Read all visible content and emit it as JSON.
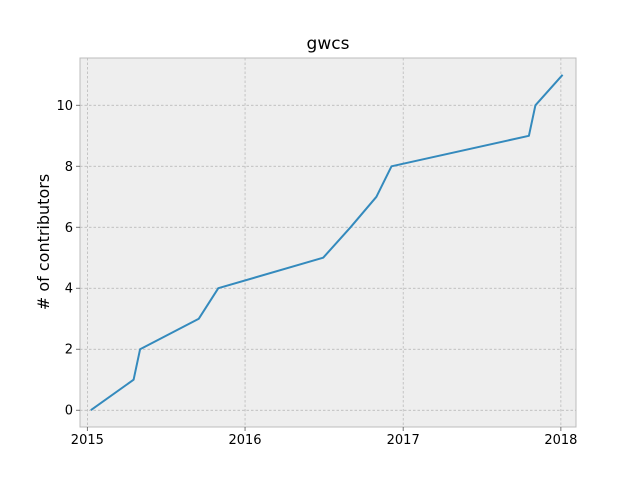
{
  "chart_data": {
    "type": "line",
    "title": "gwcs",
    "xlabel": "",
    "ylabel": "# of contributors",
    "xlim": [
      "2014-12-15",
      "2018-02-05"
    ],
    "ylim": [
      -0.55,
      11.55
    ],
    "grid": true,
    "x_ticks": [
      "2015",
      "2016",
      "2017",
      "2018"
    ],
    "y_ticks": [
      0,
      2,
      4,
      6,
      8,
      10
    ],
    "series": [
      {
        "color": "#348abd",
        "points": [
          [
            "2015-01-09",
            0
          ],
          [
            "2015-04-18",
            1
          ],
          [
            "2015-05-03",
            2
          ],
          [
            "2015-09-16",
            3
          ],
          [
            "2015-10-31",
            4
          ],
          [
            "2016-06-30",
            5
          ],
          [
            "2016-09-01",
            6
          ],
          [
            "2016-10-31",
            7
          ],
          [
            "2016-12-05",
            8
          ],
          [
            "2017-10-19",
            9
          ],
          [
            "2017-11-03",
            10
          ],
          [
            "2018-01-05",
            11
          ]
        ]
      }
    ]
  },
  "colors": {
    "plot_background": "#eeeeee",
    "grid": "#b2b2b2",
    "spine": "#bcbcbc"
  }
}
